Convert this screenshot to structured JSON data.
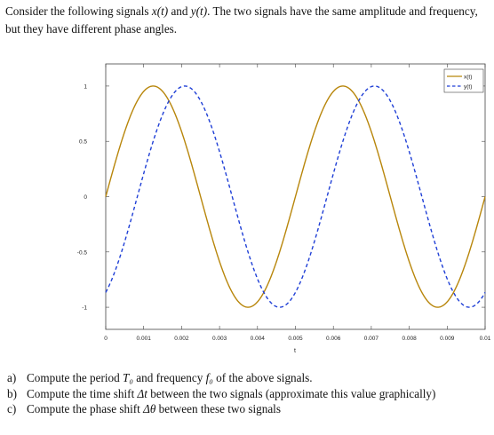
{
  "intro": {
    "p1": "Consider the following signals ",
    "x_sym": "x(t)",
    "p2": " and ",
    "y_sym": "y(t)",
    "p3": ". The two signals have the same amplitude and frequency, but they have different phase angles."
  },
  "questions": [
    {
      "label": "a)",
      "p1": "Compute the period ",
      "sym1": "T₀",
      "p2": " and frequency ",
      "sym2": "f₀",
      "p3": " of the above signals."
    },
    {
      "label": "b)",
      "p1": "Compute the time shift ",
      "sym1": "Δt",
      "p2": " between the two signals (approximate this value graphically)"
    },
    {
      "label": "c)",
      "p1": "Compute the phase shift ",
      "sym1": "Δθ",
      "p2": " between these two signals"
    }
  ],
  "chart_data": {
    "type": "line",
    "title": "",
    "xlabel": "t",
    "ylabel": "",
    "xlim": [
      0,
      0.01
    ],
    "ylim": [
      -1.2,
      1.2
    ],
    "x_ticks": [
      "0",
      "0.001",
      "0.002",
      "0.003",
      "0.004",
      "0.005",
      "0.006",
      "0.007",
      "0.008",
      "0.009",
      "0.01"
    ],
    "y_ticks": [
      "1",
      "0.5",
      "0",
      "-0.5",
      "-1"
    ],
    "y_tick_values": [
      1,
      0.5,
      0,
      -0.5,
      -1
    ],
    "grid": false,
    "legend_position": "top-right",
    "series": [
      {
        "name": "x(t)",
        "color": "#b8860b",
        "style": "solid",
        "function": "sin(2*pi*200*t)",
        "amplitude": 1,
        "frequency_hz": 200,
        "phase_rad": 0
      },
      {
        "name": "y(t)",
        "color": "#1f3fd6",
        "style": "dashed",
        "function": "sin(2*pi*200*t - pi/3)",
        "amplitude": 1,
        "frequency_hz": 200,
        "phase_rad": -1.0472
      }
    ]
  }
}
